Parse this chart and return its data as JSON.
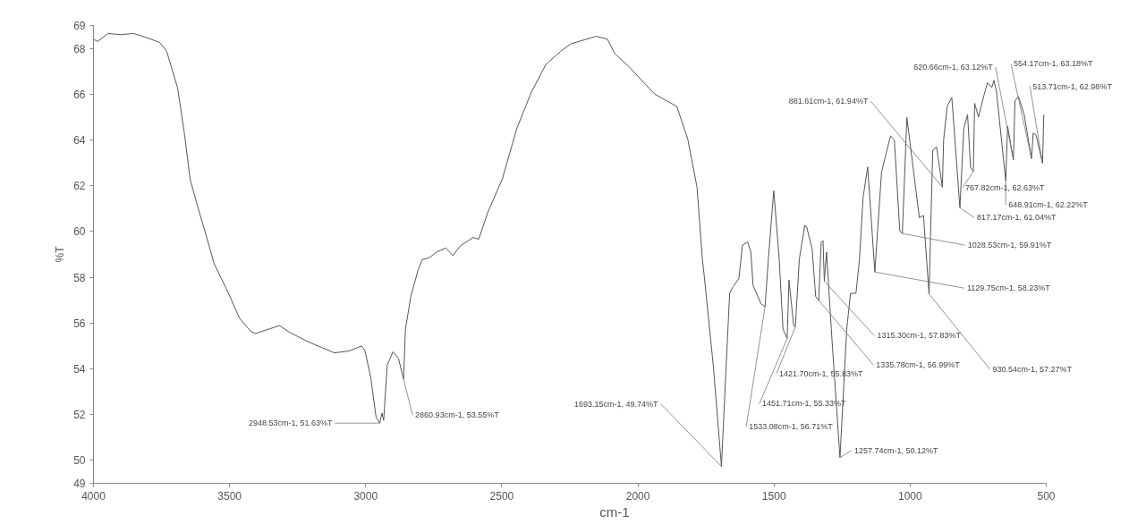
{
  "chart_data": {
    "type": "line",
    "xlabel": "cm-1",
    "ylabel": "%T",
    "color": "#555555",
    "grid": false,
    "xlim": [
      4000,
      500
    ],
    "ylim": [
      49,
      69
    ],
    "xticks": [
      4000,
      3500,
      3000,
      2500,
      2000,
      1500,
      1000,
      500
    ],
    "yticks": [
      49,
      50,
      52,
      54,
      56,
      58,
      60,
      62,
      64,
      66,
      68,
      69
    ],
    "x": [
      4000,
      3985,
      3947,
      3900,
      3852,
      3812,
      3757,
      3731,
      3691,
      3665,
      3645,
      3611,
      3584,
      3557,
      3504,
      3464,
      3423,
      3406,
      3317,
      3276,
      3209,
      3115,
      3061,
      3015,
      3003,
      2982,
      2962,
      2948.53,
      2940,
      2934,
      2921,
      2900,
      2880,
      2860.93,
      2854,
      2834,
      2808,
      2793,
      2767,
      2740,
      2706,
      2680,
      2653,
      2605,
      2585,
      2552,
      2498,
      2445,
      2391,
      2338,
      2284,
      2246,
      2153,
      2112,
      2085,
      2033,
      1938,
      1857,
      1817,
      1783,
      1763,
      1757,
      1723,
      1693.15,
      1676,
      1663,
      1650,
      1629,
      1616,
      1597,
      1585,
      1577,
      1548,
      1533.08,
      1521,
      1501,
      1481,
      1467,
      1451.71,
      1445,
      1428,
      1421.7,
      1407,
      1387,
      1380,
      1360,
      1347,
      1335.78,
      1327,
      1320,
      1315.3,
      1307,
      1287,
      1257.74,
      1233,
      1219,
      1199,
      1186,
      1173,
      1156,
      1139,
      1129.75,
      1105,
      1072,
      1058,
      1038,
      1028.53,
      1012,
      985,
      966,
      951,
      930.54,
      917,
      903,
      881.61,
      877,
      864,
      847,
      817.17,
      803,
      789,
      778,
      767.82,
      763,
      749,
      729,
      716,
      700,
      692,
      683,
      648.91,
      642,
      620.66,
      615,
      602,
      581,
      554.17,
      548,
      537,
      513.71,
      509
    ],
    "values": [
      68.4,
      68.3,
      68.65,
      68.6,
      68.65,
      68.5,
      68.26,
      67.87,
      66.27,
      64.2,
      62.28,
      60.83,
      59.74,
      58.6,
      57.3,
      56.22,
      55.65,
      55.54,
      55.89,
      55.57,
      55.17,
      54.7,
      54.78,
      55.0,
      54.8,
      53.66,
      51.9,
      51.63,
      52.07,
      51.75,
      54.16,
      54.74,
      54.47,
      53.55,
      55.74,
      57.17,
      58.3,
      58.77,
      58.85,
      59.1,
      59.28,
      58.95,
      59.37,
      59.74,
      59.66,
      60.82,
      62.3,
      64.5,
      66.1,
      67.3,
      67.87,
      68.2,
      68.53,
      68.4,
      67.77,
      67.2,
      66.0,
      65.46,
      64.04,
      61.94,
      58.76,
      58.14,
      54.13,
      49.74,
      54.1,
      57.3,
      57.6,
      57.95,
      59.4,
      59.55,
      59.1,
      57.64,
      56.85,
      56.71,
      58.77,
      61.78,
      58.8,
      55.73,
      55.33,
      57.88,
      55.9,
      55.83,
      58.8,
      60.27,
      60.2,
      59.23,
      57.16,
      56.99,
      59.5,
      59.6,
      57.83,
      59.1,
      55.25,
      50.12,
      55.73,
      57.3,
      57.3,
      58.8,
      61.47,
      62.82,
      59.87,
      58.23,
      62.6,
      64.18,
      64.0,
      60.03,
      59.91,
      64.98,
      62.4,
      60.6,
      60.7,
      57.27,
      63.54,
      63.7,
      61.94,
      64.0,
      65.46,
      65.86,
      61.04,
      64.5,
      65.1,
      62.8,
      62.63,
      65.6,
      65.0,
      65.94,
      66.5,
      66.3,
      66.6,
      66.13,
      62.22,
      64.6,
      63.12,
      65.7,
      65.9,
      65.1,
      63.18,
      64.3,
      64.2,
      62.98,
      65.1
    ],
    "annotations": [
      {
        "text": "2948.53cm-1, 51.63%T",
        "x": 2948.53,
        "y": 51.63
      },
      {
        "text": "2860.93cm-1, 53.55%T",
        "x": 2860.93,
        "y": 53.55
      },
      {
        "text": "1693.15cm-1, 49.74%T",
        "x": 1693.15,
        "y": 49.74
      },
      {
        "text": "1533.08cm-1, 56.71%T",
        "x": 1533.08,
        "y": 56.71
      },
      {
        "text": "1451.71cm-1, 55.33%T",
        "x": 1451.71,
        "y": 55.33
      },
      {
        "text": "1421.70cm-1, 55.83%T",
        "x": 1421.7,
        "y": 55.83
      },
      {
        "text": "1335.78cm-1, 56.99%T",
        "x": 1335.78,
        "y": 56.99
      },
      {
        "text": "1315.30cm-1, 57.83%T",
        "x": 1315.3,
        "y": 57.83
      },
      {
        "text": "1257.74cm-1, 50.12%T",
        "x": 1257.74,
        "y": 50.12
      },
      {
        "text": "1129.75cm-1, 58.23%T",
        "x": 1129.75,
        "y": 58.23
      },
      {
        "text": "930.54cm-1, 57.27%T",
        "x": 930.54,
        "y": 57.27
      },
      {
        "text": "1028.53cm-1, 59.91%T",
        "x": 1028.53,
        "y": 59.91
      },
      {
        "text": "881.61cm-1, 61.94%T",
        "x": 881.61,
        "y": 61.94
      },
      {
        "text": "817.17cm-1, 61.04%T",
        "x": 817.17,
        "y": 61.04
      },
      {
        "text": "767.82cm-1, 62.63%T",
        "x": 767.82,
        "y": 62.63
      },
      {
        "text": "648.91cm-1, 62.22%T",
        "x": 648.91,
        "y": 62.22
      },
      {
        "text": "620.66cm-1, 63.12%T",
        "x": 620.66,
        "y": 63.12
      },
      {
        "text": "554.17cm-1, 63.18%T",
        "x": 554.17,
        "y": 63.18
      },
      {
        "text": "513.71cm-1, 62.98%T",
        "x": 513.71,
        "y": 62.98
      }
    ]
  }
}
